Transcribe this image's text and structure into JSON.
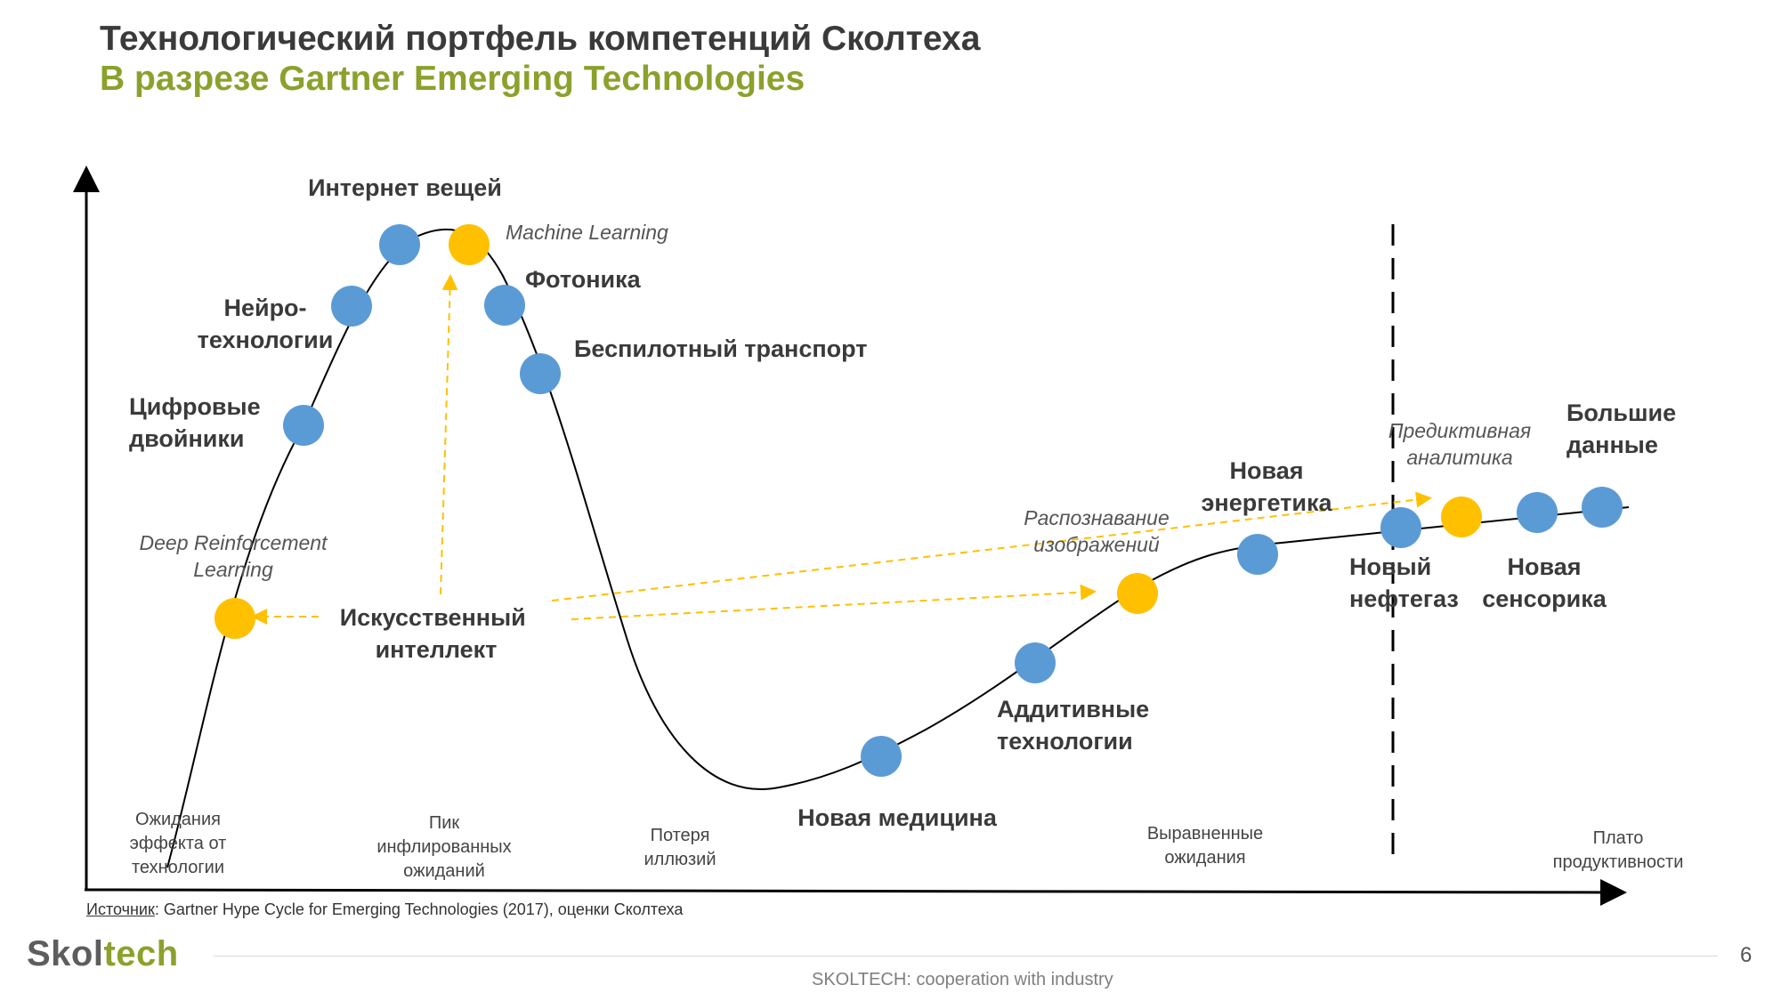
{
  "header": {
    "title": "Технологический портфель компетенций Сколтеха",
    "subtitle": "В разрезе Gartner Emerging Technologies"
  },
  "colors": {
    "blue": "#5b9bd5",
    "yellow": "#ffc000",
    "accent_green": "#8ba12c",
    "text_dark": "#3a3a3a"
  },
  "technologies": [
    {
      "key": "iot",
      "label": [
        "Интернет вещей"
      ],
      "kind": "blue",
      "style": "bold"
    },
    {
      "key": "ml",
      "label": [
        "Machine Learning"
      ],
      "kind": "yellow",
      "style": "italic"
    },
    {
      "key": "neuro",
      "label": [
        "Нейро-",
        "технологии"
      ],
      "kind": "blue",
      "style": "bold"
    },
    {
      "key": "photonics",
      "label": [
        "Фотоника"
      ],
      "kind": "blue",
      "style": "bold"
    },
    {
      "key": "drones",
      "label": [
        "Беспилотный транспорт"
      ],
      "kind": "blue",
      "style": "bold"
    },
    {
      "key": "twins",
      "label": [
        "Цифровые",
        "двойники"
      ],
      "kind": "blue",
      "style": "bold"
    },
    {
      "key": "drl",
      "label": [
        "Deep Reinforcement",
        "Learning"
      ],
      "kind": "yellow",
      "style": "italic"
    },
    {
      "key": "medicine",
      "label": [
        "Новая медицина"
      ],
      "kind": "blue",
      "style": "bold"
    },
    {
      "key": "additive",
      "label": [
        "Аддитивные",
        "технологии"
      ],
      "kind": "blue",
      "style": "bold"
    },
    {
      "key": "recognition",
      "label": [
        "Распознавание",
        "изображений"
      ],
      "kind": "yellow",
      "style": "italic"
    },
    {
      "key": "energy",
      "label": [
        "Новая",
        "энергетика"
      ],
      "kind": "blue",
      "style": "bold"
    },
    {
      "key": "oilgas",
      "label": [
        "Новый",
        "нефтегаз"
      ],
      "kind": "blue",
      "style": "bold"
    },
    {
      "key": "predictive",
      "label": [
        "Предиктивная",
        "аналитика"
      ],
      "kind": "yellow",
      "style": "italic"
    },
    {
      "key": "sensors",
      "label": [
        "Новая",
        "сенсорика"
      ],
      "kind": "blue",
      "style": "bold"
    },
    {
      "key": "bigdata",
      "label": [
        "Большие",
        "данные"
      ],
      "kind": "blue",
      "style": "bold"
    }
  ],
  "ai": {
    "label": [
      "Искусственный",
      "интеллект"
    ]
  },
  "phases": [
    {
      "key": "trigger",
      "label": [
        "Ожидания",
        "эффекта от",
        "технологии"
      ]
    },
    {
      "key": "peak",
      "label": [
        "Пик",
        "инфлированных",
        "ожиданий"
      ]
    },
    {
      "key": "trough",
      "label": [
        "Потеря",
        "иллюзий"
      ]
    },
    {
      "key": "slope",
      "label": [
        "Выравненные",
        "ожидания"
      ]
    },
    {
      "key": "plateau",
      "label": [
        "Плато",
        "продуктивности"
      ]
    }
  ],
  "source": {
    "prefix": "Источник",
    "text": ": Gartner Hype Cycle for Emerging Technologies (2017), оценки Сколтеха"
  },
  "footer": {
    "logo_part1": "Skol",
    "logo_part2": "tech",
    "page_number": "6",
    "tagline": "SKOLTECH: cooperation with industry"
  }
}
